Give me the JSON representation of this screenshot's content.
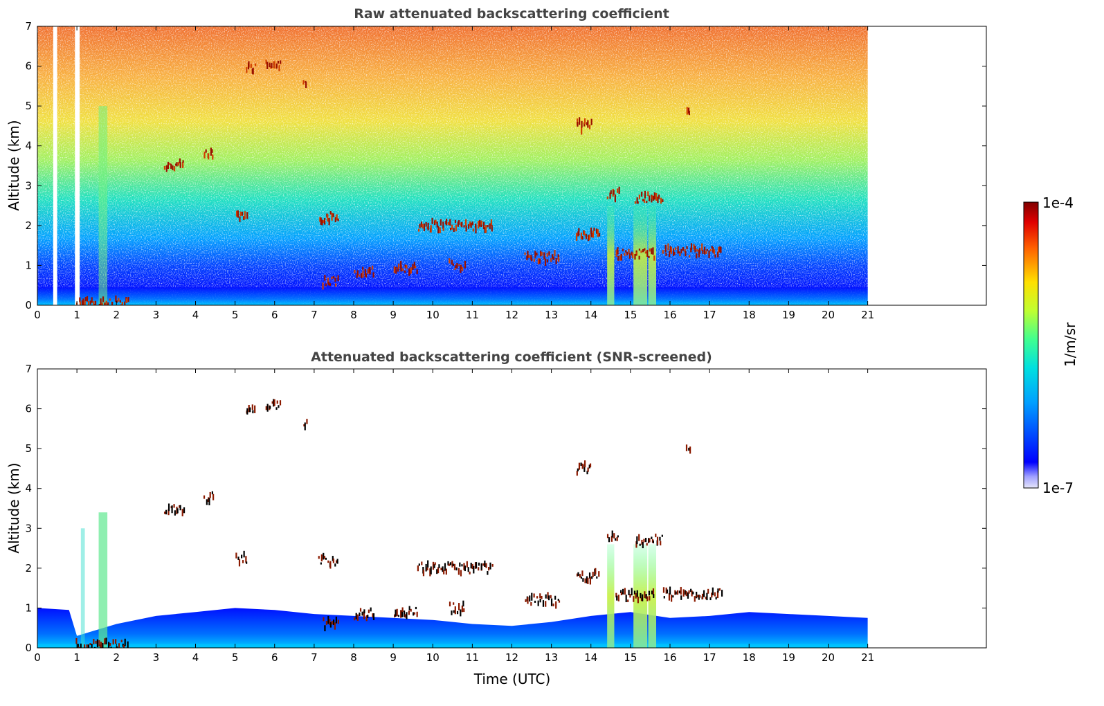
{
  "chart_data": [
    {
      "type": "heatmap",
      "title": "Raw attenuated backscattering coefficient",
      "xlabel": "",
      "ylabel": "Altitude (km)",
      "xlim": [
        0,
        24
      ],
      "ylim": [
        0,
        7
      ],
      "xticks": [
        "0",
        "1",
        "2",
        "3",
        "4",
        "5",
        "6",
        "7",
        "8",
        "9",
        "10",
        "11",
        "12",
        "13",
        "14",
        "15",
        "16",
        "17",
        "18",
        "19",
        "20",
        "21"
      ],
      "yticks": [
        "0",
        "1",
        "2",
        "3",
        "4",
        "5",
        "6",
        "7"
      ],
      "data_end_time": 21,
      "screened": false,
      "cloud_features": [
        {
          "t0": 5.25,
          "t1": 5.5,
          "alt": 5.95
        },
        {
          "t0": 5.75,
          "t1": 6.15,
          "alt": 6.05
        },
        {
          "t0": 6.7,
          "t1": 6.8,
          "alt": 5.62
        },
        {
          "t0": 3.2,
          "t1": 3.7,
          "alt": 3.5
        },
        {
          "t0": 4.2,
          "t1": 4.45,
          "alt": 3.78
        },
        {
          "t0": 5.0,
          "t1": 5.3,
          "alt": 2.25
        },
        {
          "t0": 7.1,
          "t1": 7.6,
          "alt": 2.2
        },
        {
          "t0": 9.6,
          "t1": 11.5,
          "alt": 2.0
        },
        {
          "t0": 7.2,
          "t1": 7.6,
          "alt": 0.6
        },
        {
          "t0": 8.0,
          "t1": 8.5,
          "alt": 0.85
        },
        {
          "t0": 9.0,
          "t1": 9.6,
          "alt": 0.9
        },
        {
          "t0": 10.4,
          "t1": 10.8,
          "alt": 1.0
        },
        {
          "t0": 12.3,
          "t1": 13.2,
          "alt": 1.2
        },
        {
          "t0": 13.6,
          "t1": 14.0,
          "alt": 4.5
        },
        {
          "t0": 13.6,
          "t1": 14.2,
          "alt": 1.8
        },
        {
          "t0": 14.4,
          "t1": 14.7,
          "alt": 2.8
        },
        {
          "t0": 14.6,
          "t1": 15.6,
          "alt": 1.3
        },
        {
          "t0": 15.1,
          "t1": 15.8,
          "alt": 2.7
        },
        {
          "t0": 15.8,
          "t1": 17.3,
          "alt": 1.35
        },
        {
          "t0": 16.4,
          "t1": 16.5,
          "alt": 4.9
        },
        {
          "t0": 0.95,
          "t1": 2.3,
          "alt": 0.05
        }
      ],
      "aerosol_plumes": [
        {
          "t": 14.5,
          "width": 0.18
        },
        {
          "t": 15.25,
          "width": 0.35
        },
        {
          "t": 15.55,
          "width": 0.2
        }
      ],
      "bright_column_t": 1.65
    },
    {
      "type": "heatmap",
      "title": "Attenuated backscattering coefficient (SNR-screened)",
      "xlabel": "Time (UTC)",
      "ylabel": "Altitude (km)",
      "xlim": [
        0,
        24
      ],
      "ylim": [
        0,
        7
      ],
      "xticks": [
        "0",
        "1",
        "2",
        "3",
        "4",
        "5",
        "6",
        "7",
        "8",
        "9",
        "10",
        "11",
        "12",
        "13",
        "14",
        "15",
        "16",
        "17",
        "18",
        "19",
        "20",
        "21"
      ],
      "yticks": [
        "0",
        "1",
        "2",
        "3",
        "4",
        "5",
        "6",
        "7"
      ],
      "data_end_time": 21,
      "screened": true,
      "boundary_layer_height_km": [
        {
          "t": 0.0,
          "h": 1.0
        },
        {
          "t": 0.8,
          "h": 0.95
        },
        {
          "t": 1.0,
          "h": 0.3
        },
        {
          "t": 2.0,
          "h": 0.6
        },
        {
          "t": 3.0,
          "h": 0.8
        },
        {
          "t": 4.0,
          "h": 0.9
        },
        {
          "t": 5.0,
          "h": 1.0
        },
        {
          "t": 6.0,
          "h": 0.95
        },
        {
          "t": 7.0,
          "h": 0.85
        },
        {
          "t": 8.0,
          "h": 0.8
        },
        {
          "t": 9.0,
          "h": 0.75
        },
        {
          "t": 10.0,
          "h": 0.7
        },
        {
          "t": 11.0,
          "h": 0.6
        },
        {
          "t": 12.0,
          "h": 0.55
        },
        {
          "t": 13.0,
          "h": 0.65
        },
        {
          "t": 14.0,
          "h": 0.8
        },
        {
          "t": 15.0,
          "h": 0.9
        },
        {
          "t": 16.0,
          "h": 0.75
        },
        {
          "t": 17.0,
          "h": 0.8
        },
        {
          "t": 18.0,
          "h": 0.9
        },
        {
          "t": 19.0,
          "h": 0.85
        },
        {
          "t": 20.0,
          "h": 0.8
        },
        {
          "t": 21.0,
          "h": 0.75
        }
      ]
    }
  ],
  "colorbar": {
    "max_label": "1e-4",
    "min_label": "1e-7",
    "unit_label": "1/m/sr",
    "scale": "log"
  },
  "colors": {
    "jet_dark_red": "#800000",
    "jet_blue": "#0000ff",
    "plot_frame": "#000000",
    "title": "#444444"
  }
}
